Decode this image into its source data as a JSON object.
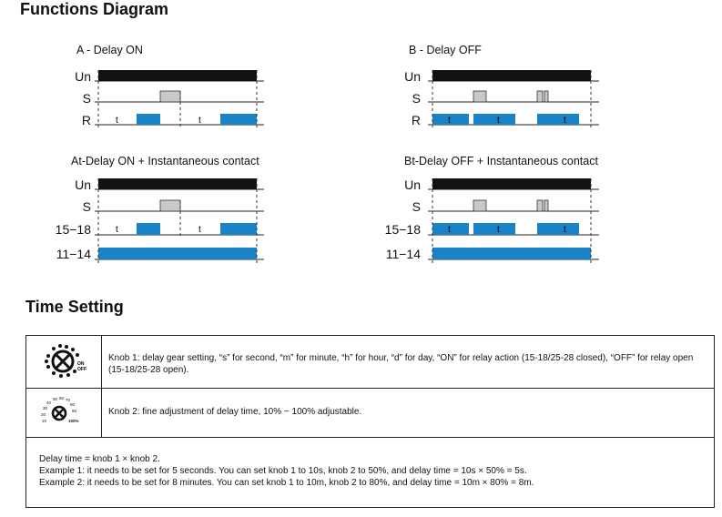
{
  "headings": {
    "functions": "Functions Diagram",
    "time": "Time Setting"
  },
  "diagrams": {
    "a": {
      "title": "A - Delay ON",
      "rows": [
        "Un",
        "S",
        "R"
      ],
      "t": "t"
    },
    "b": {
      "title": "B - Delay OFF",
      "rows": [
        "Un",
        "S",
        "R"
      ],
      "t": "t"
    },
    "at": {
      "title": "At-Delay ON + Instantaneous contact",
      "rows": [
        "Un",
        "S",
        "15−18",
        "11−14"
      ],
      "t": "t"
    },
    "bt": {
      "title": "Bt-Delay OFF + Instantaneous contact",
      "rows": [
        "Un",
        "S",
        "15−18",
        "11−14"
      ],
      "t": "t"
    }
  },
  "knob1": {
    "text": "Knob 1: delay gear setting, “s” for second, “m” for minute, “h” for hour, “d” for day, “ON” for relay action (15-18/25-28 closed), “OFF” for relay open (15-18/25-28 open).",
    "marks": [
      "ON",
      "OFF"
    ]
  },
  "knob2": {
    "text": "Knob 2: fine adjustment of delay time, 10% ~ 100% adjustable.",
    "scale": [
      "10",
      "20",
      "30",
      "40",
      "50",
      "60",
      "70",
      "80",
      "90",
      "100%"
    ]
  },
  "notes": [
    "Delay time = knob 1 × knob 2.",
    "Example 1: it needs to be set for 5 seconds. You can set knob 1 to 10s, knob 2 to 50%, and delay time = 10s × 50% = 5s.",
    "Example 2: it needs to be set for 8 minutes. You can set knob 1 to 10m, knob 2 to 80%, and delay time = 10m × 80% = 8m."
  ],
  "colors": {
    "signal": "#111111",
    "relay": "#1a82c7",
    "trigger": "#c9c9c9",
    "line": "#222222"
  }
}
